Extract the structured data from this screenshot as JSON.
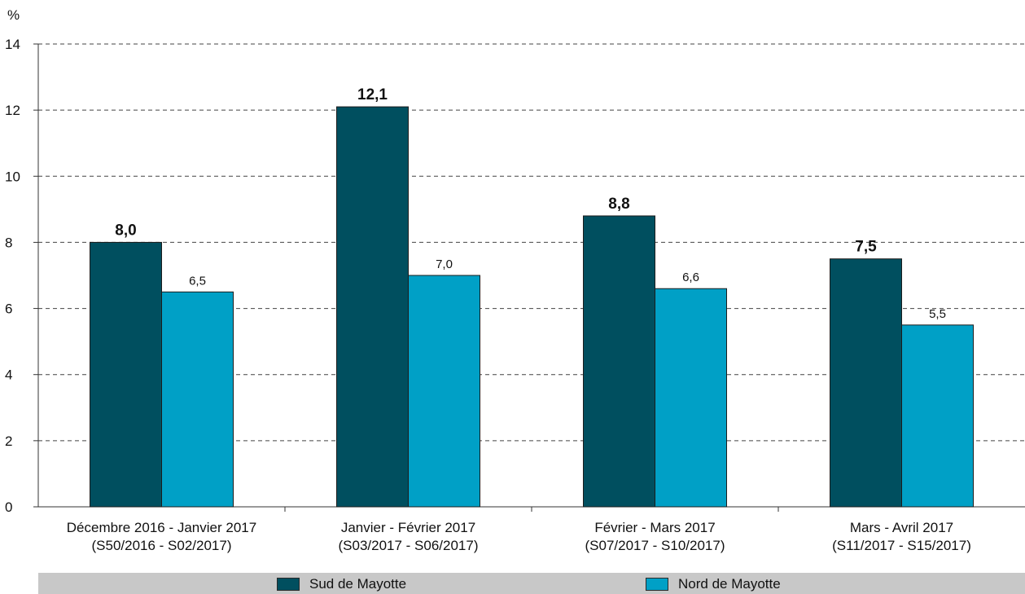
{
  "chart_data": {
    "type": "bar",
    "ylabel": "%",
    "ylim": [
      0,
      14
    ],
    "yticks": [
      0,
      2,
      4,
      6,
      8,
      10,
      12,
      14
    ],
    "grid": true,
    "categories": [
      [
        "Décembre 2016 - Janvier 2017",
        "(S50/2016 - S02/2017)"
      ],
      [
        "Janvier - Février 2017",
        "(S03/2017 - S06/2017)"
      ],
      [
        "Février - Mars 2017",
        "(S07/2017 - S10/2017)"
      ],
      [
        "Mars - Avril 2017",
        "(S11/2017 - S15/2017)"
      ]
    ],
    "series": [
      {
        "name": "Sud de Mayotte",
        "color": "#004f5f",
        "values": [
          8.0,
          12.1,
          8.8,
          7.5
        ],
        "labels": [
          "8,0",
          "12,1",
          "8,8",
          "7,5"
        ],
        "bold_labels": true
      },
      {
        "name": "Nord de Mayotte",
        "color": "#00a0c6",
        "values": [
          6.5,
          7.0,
          6.6,
          5.5
        ],
        "labels": [
          "6,5",
          "7,0",
          "6,6",
          "5,5"
        ],
        "bold_labels": false
      }
    ],
    "legend_position": "bottom"
  }
}
